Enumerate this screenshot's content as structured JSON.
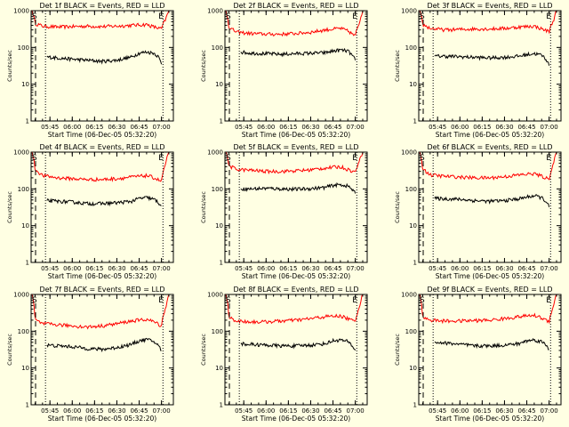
{
  "colors": {
    "background": "#FFFFE3",
    "axes": "#000000",
    "events": "#000000",
    "lld": "#FF0000"
  },
  "chart_data": [
    {
      "type": "line",
      "panel_id": "det1",
      "title": "Det 1f BLACK = Events, RED = LLD",
      "xlabel": "Start Time (06-Dec-05 05:32:20)",
      "ylabel": "Counts/sec",
      "y_scale": "log",
      "ylim": [
        1,
        1000
      ],
      "xlim": [
        "05:32:20",
        "07:08:00"
      ],
      "x_tick_labels": [
        "05:45",
        "06:00",
        "06:15",
        "06:30",
        "06:45",
        "07:00"
      ],
      "y_tick_labels": [
        "1",
        "10",
        "100",
        "1000"
      ],
      "markers": {
        "start": "S",
        "end": "E"
      },
      "dotted_lines_at": [
        "05:42:00",
        "07:01:00"
      ],
      "dashed_line_at": "05:35:20",
      "series": [
        {
          "name": "LLD",
          "color": "#FF0000",
          "x": [
            "05:33",
            "05:35",
            "05:40",
            "05:50",
            "06:00",
            "06:10",
            "06:20",
            "06:30",
            "06:40",
            "06:50",
            "06:55",
            "07:00",
            "07:03",
            "07:05"
          ],
          "values": [
            1000,
            450,
            380,
            360,
            370,
            380,
            370,
            380,
            400,
            420,
            360,
            320,
            600,
            1000
          ]
        },
        {
          "name": "Events",
          "color": "#000000",
          "x": [
            "05:43",
            "05:50",
            "06:00",
            "06:10",
            "06:20",
            "06:30",
            "06:40",
            "06:45",
            "06:50",
            "06:55",
            "06:58",
            "07:00"
          ],
          "values": [
            55,
            52,
            48,
            45,
            42,
            45,
            55,
            70,
            75,
            70,
            55,
            35
          ]
        }
      ]
    },
    {
      "type": "line",
      "panel_id": "det2",
      "title": "Det 2f BLACK = Events, RED = LLD",
      "xlabel": "Start Time (06-Dec-05 05:32:20)",
      "ylabel": "Counts/sec",
      "y_scale": "log",
      "ylim": [
        1,
        1000
      ],
      "xlim": [
        "05:32:20",
        "07:08:00"
      ],
      "x_tick_labels": [
        "05:45",
        "06:00",
        "06:15",
        "06:30",
        "06:45",
        "07:00"
      ],
      "y_tick_labels": [
        "1",
        "10",
        "100",
        "1000"
      ],
      "markers": {
        "start": "S",
        "end": "E"
      },
      "dotted_lines_at": [
        "05:42:00",
        "07:01:00"
      ],
      "dashed_line_at": "05:35:20",
      "series": [
        {
          "name": "LLD",
          "color": "#FF0000",
          "x": [
            "05:33",
            "05:35",
            "05:40",
            "05:50",
            "06:00",
            "06:10",
            "06:20",
            "06:30",
            "06:40",
            "06:50",
            "06:55",
            "07:00",
            "07:03",
            "07:05"
          ],
          "values": [
            1000,
            350,
            260,
            240,
            230,
            230,
            240,
            260,
            300,
            330,
            280,
            200,
            500,
            1000
          ]
        },
        {
          "name": "Events",
          "color": "#000000",
          "x": [
            "05:43",
            "05:50",
            "06:00",
            "06:10",
            "06:20",
            "06:30",
            "06:40",
            "06:45",
            "06:50",
            "06:55",
            "06:58",
            "07:00"
          ],
          "values": [
            75,
            70,
            68,
            65,
            68,
            70,
            72,
            80,
            85,
            80,
            60,
            45
          ]
        }
      ]
    },
    {
      "type": "line",
      "panel_id": "det3",
      "title": "Det 3f BLACK = Events, RED = LLD",
      "xlabel": "Start Time (06-Dec-05 05:32:20)",
      "ylabel": "Counts/sec",
      "y_scale": "log",
      "ylim": [
        1,
        1000
      ],
      "xlim": [
        "05:32:20",
        "07:08:00"
      ],
      "x_tick_labels": [
        "05:45",
        "06:00",
        "06:15",
        "06:30",
        "06:45",
        "07:00"
      ],
      "y_tick_labels": [
        "1",
        "10",
        "100",
        "1000"
      ],
      "markers": {
        "start": "S",
        "end": "E"
      },
      "dotted_lines_at": [
        "05:42:00",
        "07:01:00"
      ],
      "dashed_line_at": "05:35:20",
      "series": [
        {
          "name": "LLD",
          "color": "#FF0000",
          "x": [
            "05:33",
            "05:35",
            "05:40",
            "05:50",
            "06:00",
            "06:10",
            "06:20",
            "06:30",
            "06:40",
            "06:50",
            "06:55",
            "07:00",
            "07:03",
            "07:05"
          ],
          "values": [
            1000,
            420,
            330,
            300,
            310,
            320,
            320,
            330,
            360,
            380,
            320,
            270,
            550,
            1000
          ]
        },
        {
          "name": "Events",
          "color": "#000000",
          "x": [
            "05:43",
            "05:50",
            "06:00",
            "06:10",
            "06:20",
            "06:30",
            "06:40",
            "06:45",
            "06:50",
            "06:55",
            "06:58",
            "07:00"
          ],
          "values": [
            58,
            58,
            56,
            54,
            52,
            54,
            58,
            64,
            68,
            62,
            48,
            32
          ]
        }
      ]
    },
    {
      "type": "line",
      "panel_id": "det4",
      "title": "Det 4f BLACK = Events, RED = LLD",
      "xlabel": "Start Time (06-Dec-05 05:32:20)",
      "ylabel": "Counts/sec",
      "y_scale": "log",
      "ylim": [
        1,
        1000
      ],
      "xlim": [
        "05:32:20",
        "07:08:00"
      ],
      "x_tick_labels": [
        "05:45",
        "06:00",
        "06:15",
        "06:30",
        "06:45",
        "07:00"
      ],
      "y_tick_labels": [
        "1",
        "10",
        "100",
        "1000"
      ],
      "markers": {
        "start": "S",
        "end": "E"
      },
      "dotted_lines_at": [
        "05:42:00",
        "07:01:00"
      ],
      "dashed_line_at": "05:35:20",
      "series": [
        {
          "name": "LLD",
          "color": "#FF0000",
          "x": [
            "05:33",
            "05:35",
            "05:40",
            "05:50",
            "06:00",
            "06:10",
            "06:20",
            "06:30",
            "06:40",
            "06:50",
            "06:55",
            "07:00",
            "07:03",
            "07:05"
          ],
          "values": [
            1000,
            330,
            230,
            200,
            190,
            180,
            180,
            190,
            210,
            230,
            200,
            160,
            500,
            1000
          ]
        },
        {
          "name": "Events",
          "color": "#000000",
          "x": [
            "05:43",
            "05:50",
            "06:00",
            "06:10",
            "06:20",
            "06:30",
            "06:40",
            "06:45",
            "06:50",
            "06:55",
            "06:58",
            "07:00"
          ],
          "values": [
            48,
            46,
            44,
            40,
            40,
            42,
            46,
            55,
            58,
            52,
            42,
            35
          ]
        }
      ]
    },
    {
      "type": "line",
      "panel_id": "det5",
      "title": "Det 5f BLACK = Events, RED = LLD",
      "xlabel": "Start Time (06-Dec-05 05:32:20)",
      "ylabel": "Counts/sec",
      "y_scale": "log",
      "ylim": [
        1,
        1000
      ],
      "xlim": [
        "05:32:20",
        "07:08:00"
      ],
      "x_tick_labels": [
        "05:45",
        "06:00",
        "06:15",
        "06:30",
        "06:45",
        "07:00"
      ],
      "y_tick_labels": [
        "1",
        "10",
        "100",
        "1000"
      ],
      "markers": {
        "start": "S",
        "end": "E"
      },
      "dotted_lines_at": [
        "05:42:00",
        "07:01:00"
      ],
      "dashed_line_at": "05:35:20",
      "series": [
        {
          "name": "LLD",
          "color": "#FF0000",
          "x": [
            "05:33",
            "05:35",
            "05:40",
            "05:50",
            "06:00",
            "06:10",
            "06:20",
            "06:30",
            "06:40",
            "06:50",
            "06:55",
            "07:00",
            "07:03",
            "07:05"
          ],
          "values": [
            1000,
            420,
            340,
            320,
            300,
            300,
            310,
            330,
            370,
            400,
            340,
            280,
            600,
            1000
          ]
        },
        {
          "name": "Events",
          "color": "#000000",
          "x": [
            "05:43",
            "05:50",
            "06:00",
            "06:10",
            "06:20",
            "06:30",
            "06:40",
            "06:45",
            "06:50",
            "06:55",
            "06:58",
            "07:00"
          ],
          "values": [
            100,
            100,
            104,
            100,
            98,
            102,
            110,
            125,
            130,
            120,
            95,
            75
          ]
        }
      ]
    },
    {
      "type": "line",
      "panel_id": "det6",
      "title": "Det 6f BLACK = Events, RED = LLD",
      "xlabel": "Start Time (06-Dec-05 05:32:20)",
      "ylabel": "Counts/sec",
      "y_scale": "log",
      "ylim": [
        1,
        1000
      ],
      "xlim": [
        "05:32:20",
        "07:08:00"
      ],
      "x_tick_labels": [
        "05:45",
        "06:00",
        "06:15",
        "06:30",
        "06:45",
        "07:00"
      ],
      "y_tick_labels": [
        "1",
        "10",
        "100",
        "1000"
      ],
      "markers": {
        "start": "S",
        "end": "E"
      },
      "dotted_lines_at": [
        "05:42:00",
        "07:01:00"
      ],
      "dashed_line_at": "05:35:20",
      "series": [
        {
          "name": "LLD",
          "color": "#FF0000",
          "x": [
            "05:33",
            "05:35",
            "05:40",
            "05:50",
            "06:00",
            "06:10",
            "06:20",
            "06:30",
            "06:40",
            "06:50",
            "06:55",
            "07:00",
            "07:03",
            "07:05"
          ],
          "values": [
            1000,
            350,
            240,
            220,
            210,
            200,
            200,
            215,
            240,
            260,
            220,
            180,
            500,
            1000
          ]
        },
        {
          "name": "Events",
          "color": "#000000",
          "x": [
            "05:43",
            "05:50",
            "06:00",
            "06:10",
            "06:20",
            "06:30",
            "06:40",
            "06:45",
            "06:50",
            "06:55",
            "06:58",
            "07:00"
          ],
          "values": [
            55,
            54,
            52,
            48,
            46,
            48,
            54,
            60,
            65,
            58,
            45,
            32
          ]
        }
      ]
    },
    {
      "type": "line",
      "panel_id": "det7",
      "title": "Det 7f BLACK = Events, RED = LLD",
      "xlabel": "Start Time (06-Dec-05 05:32:20)",
      "ylabel": "Counts/sec",
      "y_scale": "log",
      "ylim": [
        1,
        1000
      ],
      "xlim": [
        "05:32:20",
        "07:08:00"
      ],
      "x_tick_labels": [
        "05:45",
        "06:00",
        "06:15",
        "06:30",
        "06:45",
        "07:00"
      ],
      "y_tick_labels": [
        "1",
        "10",
        "100",
        "1000"
      ],
      "markers": {
        "start": "S",
        "end": "E"
      },
      "dotted_lines_at": [
        "05:42:00",
        "07:01:00"
      ],
      "dashed_line_at": "05:35:20",
      "series": [
        {
          "name": "LLD",
          "color": "#FF0000",
          "x": [
            "05:33",
            "05:35",
            "05:40",
            "05:50",
            "06:00",
            "06:10",
            "06:20",
            "06:30",
            "06:40",
            "06:50",
            "06:55",
            "07:00",
            "07:03",
            "07:05"
          ],
          "values": [
            1000,
            200,
            160,
            150,
            140,
            130,
            140,
            160,
            190,
            210,
            180,
            140,
            450,
            1000
          ]
        },
        {
          "name": "Events",
          "color": "#000000",
          "x": [
            "05:43",
            "05:50",
            "06:00",
            "06:10",
            "06:20",
            "06:30",
            "06:40",
            "06:45",
            "06:50",
            "06:55",
            "06:58",
            "07:00"
          ],
          "values": [
            42,
            40,
            38,
            34,
            32,
            36,
            44,
            55,
            60,
            52,
            40,
            30
          ]
        }
      ]
    },
    {
      "type": "line",
      "panel_id": "det8",
      "title": "Det 8f BLACK = Events, RED = LLD",
      "xlabel": "Start Time (06-Dec-05 05:32:20)",
      "ylabel": "Counts/sec",
      "y_scale": "log",
      "ylim": [
        1,
        1000
      ],
      "xlim": [
        "05:32:20",
        "07:08:00"
      ],
      "x_tick_labels": [
        "05:45",
        "06:00",
        "06:15",
        "06:30",
        "06:45",
        "07:00"
      ],
      "y_tick_labels": [
        "1",
        "10",
        "100",
        "1000"
      ],
      "markers": {
        "start": "S",
        "end": "E"
      },
      "dotted_lines_at": [
        "05:42:00",
        "07:01:00"
      ],
      "dashed_line_at": "05:35:20",
      "series": [
        {
          "name": "LLD",
          "color": "#FF0000",
          "x": [
            "05:33",
            "05:35",
            "05:40",
            "05:50",
            "06:00",
            "06:10",
            "06:20",
            "06:30",
            "06:40",
            "06:50",
            "06:55",
            "07:00",
            "07:03",
            "07:05"
          ],
          "values": [
            1000,
            240,
            190,
            180,
            180,
            190,
            200,
            220,
            250,
            260,
            220,
            180,
            500,
            1000
          ]
        },
        {
          "name": "Events",
          "color": "#000000",
          "x": [
            "05:43",
            "05:50",
            "06:00",
            "06:10",
            "06:20",
            "06:30",
            "06:40",
            "06:45",
            "06:50",
            "06:55",
            "06:58",
            "07:00"
          ],
          "values": [
            46,
            44,
            42,
            40,
            40,
            42,
            46,
            55,
            58,
            52,
            40,
            30
          ]
        }
      ]
    },
    {
      "type": "line",
      "panel_id": "det9",
      "title": "Det 9f BLACK = Events, RED = LLD",
      "xlabel": "Start Time (06-Dec-05 05:32:20)",
      "ylabel": "Counts/sec",
      "y_scale": "log",
      "ylim": [
        1,
        1000
      ],
      "xlim": [
        "05:32:20",
        "07:08:00"
      ],
      "x_tick_labels": [
        "05:45",
        "06:00",
        "06:15",
        "06:30",
        "06:45",
        "07:00"
      ],
      "y_tick_labels": [
        "1",
        "10",
        "100",
        "1000"
      ],
      "markers": {
        "start": "S",
        "end": "E"
      },
      "dotted_lines_at": [
        "05:42:00",
        "07:01:00"
      ],
      "dashed_line_at": "05:35:20",
      "series": [
        {
          "name": "LLD",
          "color": "#FF0000",
          "x": [
            "05:33",
            "05:35",
            "05:40",
            "05:50",
            "06:00",
            "06:10",
            "06:20",
            "06:30",
            "06:40",
            "06:50",
            "06:55",
            "07:00",
            "07:03",
            "07:05"
          ],
          "values": [
            1000,
            240,
            200,
            190,
            190,
            195,
            200,
            220,
            250,
            270,
            230,
            180,
            500,
            1000
          ]
        },
        {
          "name": "Events",
          "color": "#000000",
          "x": [
            "05:43",
            "05:50",
            "06:00",
            "06:10",
            "06:20",
            "06:30",
            "06:40",
            "06:45",
            "06:50",
            "06:55",
            "06:58",
            "07:00"
          ],
          "values": [
            50,
            48,
            44,
            40,
            40,
            42,
            46,
            55,
            58,
            52,
            42,
            32
          ]
        }
      ]
    }
  ]
}
